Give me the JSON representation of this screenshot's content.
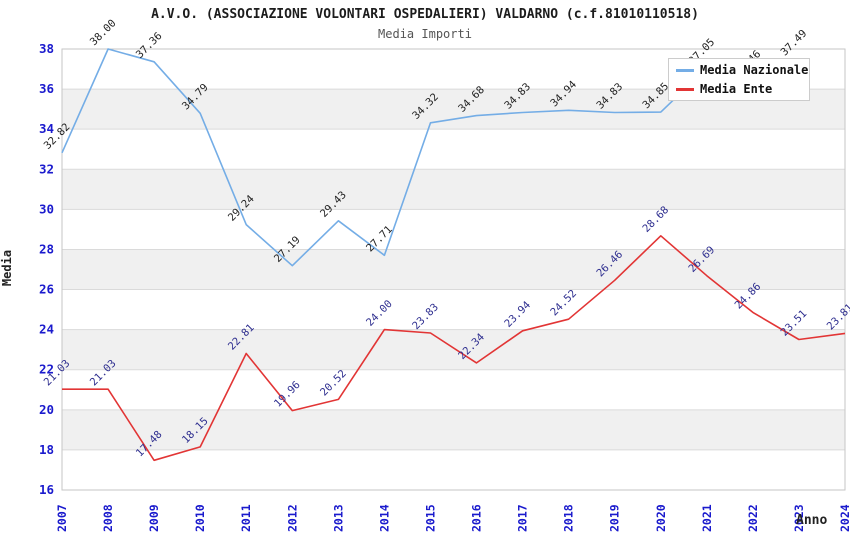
{
  "header": {
    "title": "A.V.O. (ASSOCIAZIONE VOLONTARI OSPEDALIERI) VALDARNO (c.f.81010110518)",
    "subtitle": "Media Importi"
  },
  "legend": {
    "items": [
      {
        "label": "Media Nazionale",
        "color": "#74ade6"
      },
      {
        "label": "Media Ente",
        "color": "#e23535"
      }
    ]
  },
  "colors": {
    "tick_label": "#1a1acd",
    "national_line": "#74ade6",
    "ente_line": "#e23535",
    "national_value_label": "#1f1f1f",
    "ente_value_label": "#2e2e8f",
    "band_fill": "#f0f0f0",
    "gridline": "#dadada",
    "plot_border": "#c6c6c6"
  },
  "chart_data": {
    "type": "line",
    "title": "A.V.O. (ASSOCIAZIONE VOLONTARI OSPEDALIERI) VALDARNO (c.f.81010110518)",
    "subtitle": "Media Importi",
    "xlabel": "Anno",
    "ylabel": "Media",
    "x": [
      2007,
      2008,
      2009,
      2010,
      2011,
      2012,
      2013,
      2014,
      2015,
      2016,
      2017,
      2018,
      2019,
      2020,
      2021,
      2022,
      2023,
      2024
    ],
    "ylim": [
      16,
      38
    ],
    "ytick_step": 2,
    "grid": "horizontal-with-alternating-bands",
    "legend_position": "top-right-overlapping-plot",
    "value_labels_rotation_deg": -45,
    "series": [
      {
        "name": "Media Nazionale",
        "values": [
          32.82,
          38.0,
          37.36,
          34.79,
          29.24,
          27.19,
          29.43,
          27.71,
          34.32,
          34.68,
          34.83,
          34.94,
          34.83,
          34.85,
          37.05,
          36.46,
          37.49,
          null
        ],
        "note": "2022 point and 2021-2023 segments mostly hidden behind legend box; no 2024 point"
      },
      {
        "name": "Media Ente",
        "values": [
          21.03,
          21.03,
          17.48,
          18.15,
          22.81,
          19.96,
          20.52,
          24.0,
          23.83,
          22.34,
          23.94,
          24.52,
          26.46,
          28.68,
          26.69,
          24.86,
          23.51,
          23.81
        ]
      }
    ]
  }
}
